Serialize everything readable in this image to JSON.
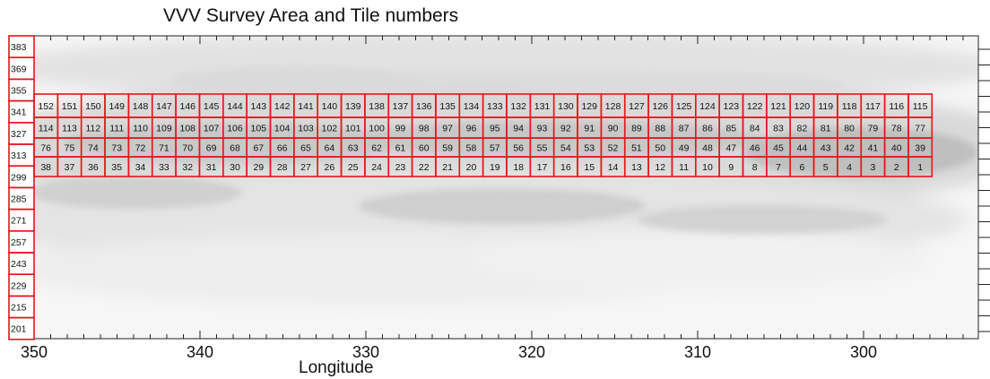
{
  "title": "VVV Survey Area and Tile numbers",
  "x_axis": {
    "label": "Longitude",
    "tick_labels": [
      "350",
      "340",
      "330",
      "320",
      "310",
      "300"
    ]
  },
  "disk_tiles": {
    "rows": [
      {
        "tiles": [
          "152",
          "151",
          "150",
          "149",
          "148",
          "147",
          "146",
          "145",
          "144",
          "143",
          "142",
          "141",
          "140",
          "139",
          "138",
          "137",
          "136",
          "135",
          "134",
          "133",
          "132",
          "131",
          "130",
          "129",
          "128",
          "127",
          "126",
          "125",
          "124",
          "123",
          "122",
          "121",
          "120",
          "119",
          "118",
          "117",
          "116",
          "115"
        ]
      },
      {
        "tiles": [
          "114",
          "113",
          "112",
          "111",
          "110",
          "109",
          "108",
          "107",
          "106",
          "105",
          "104",
          "103",
          "102",
          "101",
          "100",
          "99",
          "98",
          "97",
          "96",
          "95",
          "94",
          "93",
          "92",
          "91",
          "90",
          "89",
          "88",
          "87",
          "86",
          "85",
          "84",
          "83",
          "82",
          "81",
          "80",
          "79",
          "78",
          "77"
        ]
      },
      {
        "tiles": [
          "76",
          "75",
          "74",
          "73",
          "72",
          "71",
          "70",
          "69",
          "68",
          "67",
          "66",
          "65",
          "64",
          "63",
          "62",
          "61",
          "60",
          "59",
          "58",
          "57",
          "56",
          "55",
          "54",
          "53",
          "52",
          "51",
          "50",
          "49",
          "48",
          "47",
          "46",
          "45",
          "44",
          "43",
          "42",
          "41",
          "40",
          "39"
        ]
      },
      {
        "tiles": [
          "38",
          "37",
          "36",
          "35",
          "34",
          "33",
          "32",
          "31",
          "30",
          "29",
          "28",
          "27",
          "26",
          "25",
          "24",
          "23",
          "22",
          "21",
          "20",
          "19",
          "18",
          "17",
          "16",
          "15",
          "14",
          "13",
          "12",
          "11",
          "10",
          "9",
          "8",
          "7",
          "6",
          "5",
          "4",
          "3",
          "2",
          "1"
        ]
      }
    ]
  },
  "column_tiles": [
    "383",
    "369",
    "355",
    "341",
    "327",
    "313",
    "299",
    "285",
    "271",
    "257",
    "243",
    "229",
    "215",
    "201"
  ],
  "colors": {
    "tile_border": "#e8141c",
    "background_gray": "#d6d6d6",
    "light_gray": "#efefef",
    "dark_gray": "#b9b9b9",
    "axis": "#222222"
  }
}
